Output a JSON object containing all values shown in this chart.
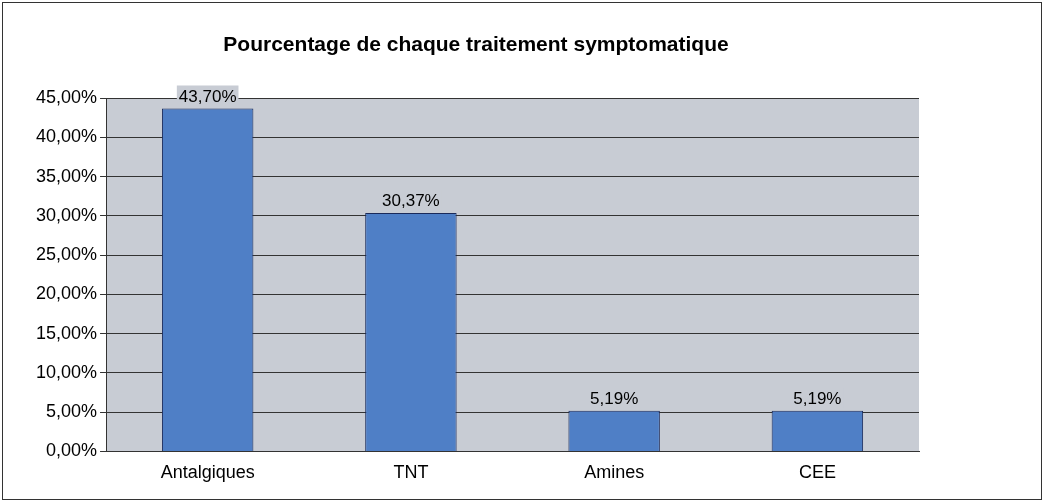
{
  "chart_data": {
    "type": "bar",
    "title": "Pourcentage de chaque traitement symptomatique",
    "categories": [
      "Antalgiques",
      "TNT",
      "Amines",
      "CEE"
    ],
    "values": [
      43.7,
      30.37,
      5.19,
      5.19
    ],
    "value_labels": [
      "43,70%",
      "30,37%",
      "5,19%",
      "5,19%"
    ],
    "color": "#4f7fc6",
    "ylim": [
      0,
      45
    ],
    "yticks": [
      {
        "value": 0,
        "label": "0,00%"
      },
      {
        "value": 5,
        "label": "5,00%"
      },
      {
        "value": 10,
        "label": "10,00%"
      },
      {
        "value": 15,
        "label": "15,00%"
      },
      {
        "value": 20,
        "label": "20,00%"
      },
      {
        "value": 25,
        "label": "25,00%"
      },
      {
        "value": 30,
        "label": "30,00%"
      },
      {
        "value": 35,
        "label": "35,00%"
      },
      {
        "value": 40,
        "label": "40,00%"
      },
      {
        "value": 45,
        "label": "45,00%"
      }
    ],
    "grid": "y"
  }
}
